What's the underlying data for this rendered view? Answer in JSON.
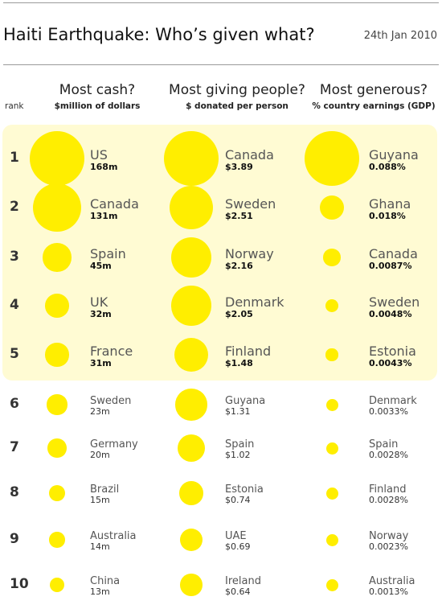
{
  "header": {
    "title": "Haiti Earthquake: Who’s given what?",
    "date": "24th Jan 2010",
    "rank_label": "rank"
  },
  "columns": [
    {
      "heading": "Most cash?",
      "subheading": "$million of dollars"
    },
    {
      "heading": "Most giving people?",
      "subheading": "$ donated per person"
    },
    {
      "heading": "Most generous?",
      "subheading": "% country earnings (GDP)"
    }
  ],
  "colors": {
    "bubble": "#ffee00",
    "highlight": "#fffbd3"
  },
  "highlight_top_n": 5,
  "chart_data": {
    "type": "bubble-table",
    "ranks": [
      1,
      2,
      3,
      4,
      5,
      6,
      7,
      8,
      9,
      10
    ],
    "panels": [
      {
        "metric": "cash",
        "unit": "m",
        "entries": [
          {
            "country": "US",
            "value": 168,
            "label": "168m"
          },
          {
            "country": "Canada",
            "value": 131,
            "label": "131m"
          },
          {
            "country": "Spain",
            "value": 45,
            "label": "45m"
          },
          {
            "country": "UK",
            "value": 32,
            "label": "32m"
          },
          {
            "country": "France",
            "value": 31,
            "label": "31m"
          },
          {
            "country": "Sweden",
            "value": 23,
            "label": "23m"
          },
          {
            "country": "Germany",
            "value": 20,
            "label": "20m"
          },
          {
            "country": "Brazil",
            "value": 15,
            "label": "15m"
          },
          {
            "country": "Australia",
            "value": 14,
            "label": "14m"
          },
          {
            "country": "China",
            "value": 13,
            "label": "13m"
          }
        ]
      },
      {
        "metric": "per_person",
        "unit": "$",
        "entries": [
          {
            "country": "Canada",
            "value": 3.89,
            "label": "$3.89"
          },
          {
            "country": "Sweden",
            "value": 2.51,
            "label": "$2.51"
          },
          {
            "country": "Norway",
            "value": 2.16,
            "label": "$2.16"
          },
          {
            "country": "Denmark",
            "value": 2.05,
            "label": "$2.05"
          },
          {
            "country": "Finland",
            "value": 1.48,
            "label": "$1.48"
          },
          {
            "country": "Guyana",
            "value": 1.31,
            "label": "$1.31"
          },
          {
            "country": "Spain",
            "value": 1.02,
            "label": "$1.02"
          },
          {
            "country": "Estonia",
            "value": 0.74,
            "label": "$0.74"
          },
          {
            "country": "UAE",
            "value": 0.69,
            "label": "$0.69"
          },
          {
            "country": "Ireland",
            "value": 0.64,
            "label": "$0.64"
          }
        ]
      },
      {
        "metric": "gdp_percent",
        "unit": "%",
        "entries": [
          {
            "country": "Guyana",
            "value": 0.088,
            "label": "0.088%"
          },
          {
            "country": "Ghana",
            "value": 0.018,
            "label": "0.018%"
          },
          {
            "country": "Canada",
            "value": 0.0087,
            "label": "0.0087%"
          },
          {
            "country": "Sweden",
            "value": 0.0048,
            "label": "0.0048%"
          },
          {
            "country": "Estonia",
            "value": 0.0043,
            "label": "0.0043%"
          },
          {
            "country": "Denmark",
            "value": 0.0033,
            "label": "0.0033%"
          },
          {
            "country": "Spain",
            "value": 0.0028,
            "label": "0.0028%"
          },
          {
            "country": "Finland",
            "value": 0.0028,
            "label": "0.0028%"
          },
          {
            "country": "Norway",
            "value": 0.0023,
            "label": "0.0023%"
          },
          {
            "country": "Australia",
            "value": 0.0013,
            "label": "0.0013%"
          }
        ]
      }
    ]
  }
}
